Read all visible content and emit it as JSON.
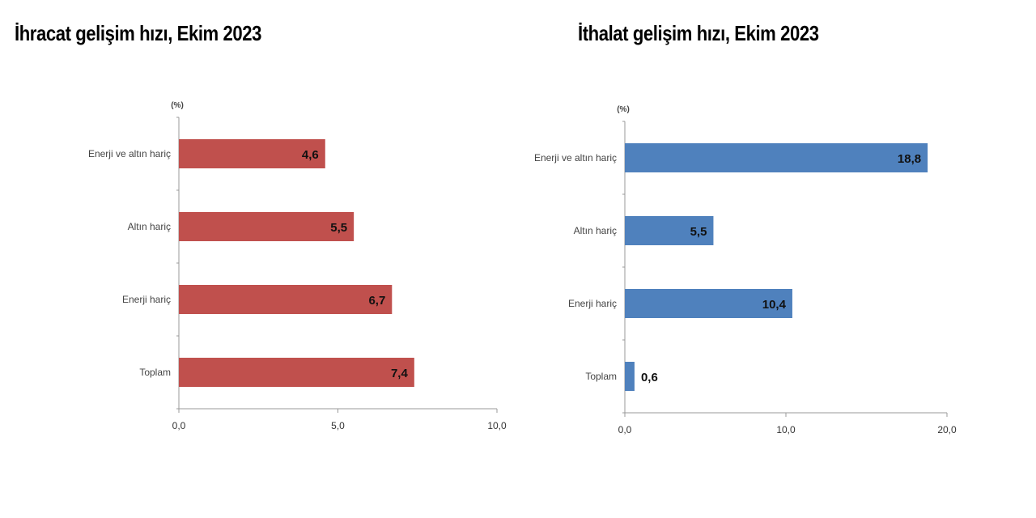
{
  "chart_data": [
    {
      "type": "bar",
      "orientation": "horizontal",
      "title": "İhracat gelişim hızı, Ekim 2023",
      "unit_label": "(%)",
      "categories": [
        "Enerji ve altın hariç",
        "Altın hariç",
        "Enerji hariç",
        "Toplam"
      ],
      "values": [
        4.6,
        5.5,
        6.7,
        7.4
      ],
      "data_labels": [
        "4,6",
        "5,5",
        "6,7",
        "7,4"
      ],
      "xlim": [
        0,
        10
      ],
      "ticks": [
        0,
        5,
        10
      ],
      "tick_labels": [
        "0,0",
        "5,0",
        "10,0"
      ],
      "color": "#c0504d",
      "grid": false
    },
    {
      "type": "bar",
      "orientation": "horizontal",
      "title": "İthalat gelişim hızı, Ekim 2023",
      "unit_label": "(%)",
      "categories": [
        "Enerji ve altın hariç",
        "Altın hariç",
        "Enerji hariç",
        "Toplam"
      ],
      "values": [
        18.8,
        5.5,
        10.4,
        0.6
      ],
      "data_labels": [
        "18,8",
        "5,5",
        "10,4",
        "0,6"
      ],
      "xlim": [
        0,
        20
      ],
      "ticks": [
        0,
        10,
        20
      ],
      "tick_labels": [
        "0,0",
        "10,0",
        "20,0"
      ],
      "color": "#4f81bd",
      "grid": false
    }
  ]
}
